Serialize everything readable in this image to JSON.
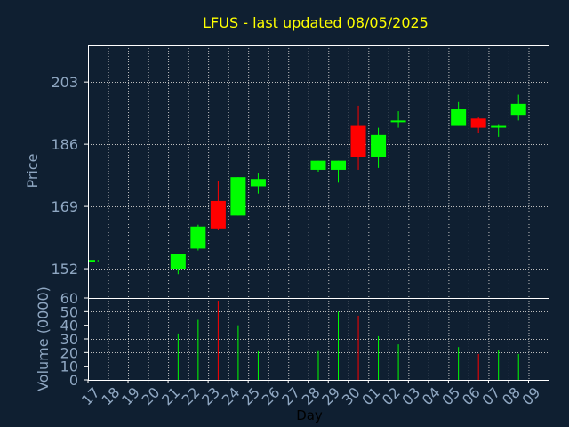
{
  "chart_data": {
    "type": "candlestick",
    "title": "LFUS - last updated 08/05/2025",
    "xlabel": "Day",
    "price_panel": {
      "ylabel": "Price",
      "ylim": [
        144,
        213
      ],
      "yticks": [
        152,
        169,
        186,
        203
      ]
    },
    "volume_panel": {
      "ylabel": "Volume (0000)",
      "ylim": [
        0,
        60
      ],
      "yticks": [
        0,
        10,
        20,
        30,
        40,
        50,
        60
      ]
    },
    "x_ticks": [
      "17",
      "18",
      "19",
      "20",
      "21",
      "22",
      "23",
      "24",
      "25",
      "26",
      "27",
      "28",
      "29",
      "30",
      "01",
      "02",
      "03",
      "04",
      "05",
      "06",
      "07",
      "08",
      "09"
    ],
    "grid": true,
    "colors": {
      "background": "#0f1f31",
      "axis": "#ffffff",
      "grid": "#c0c0c0",
      "title": "#ffff00",
      "label": "#8fa7c2",
      "up": "#00ff00",
      "down": "#ff0000"
    },
    "candles": [
      {
        "day": "17",
        "open": 154,
        "high": 154.4,
        "low": 154,
        "close": 154.4,
        "volume": 0
      },
      {
        "day": "21",
        "open": 152,
        "high": 156,
        "low": 150.5,
        "close": 156,
        "volume": 34
      },
      {
        "day": "22",
        "open": 157.5,
        "high": 164,
        "low": 157,
        "close": 163.5,
        "volume": 44
      },
      {
        "day": "23",
        "open": 170.5,
        "high": 176,
        "low": 162.5,
        "close": 163,
        "volume": 58
      },
      {
        "day": "24",
        "open": 166.5,
        "high": 177,
        "low": 166.5,
        "close": 177,
        "volume": 40
      },
      {
        "day": "25",
        "open": 174.5,
        "high": 178,
        "low": 172.5,
        "close": 176.5,
        "volume": 21
      },
      {
        "day": "28",
        "open": 179,
        "high": 181.5,
        "low": 178.5,
        "close": 181.5,
        "volume": 21
      },
      {
        "day": "29",
        "open": 179,
        "high": 181.5,
        "low": 175.5,
        "close": 181.5,
        "volume": 50
      },
      {
        "day": "30",
        "open": 191,
        "high": 196.5,
        "low": 179,
        "close": 182.5,
        "volume": 47
      },
      {
        "day": "01",
        "open": 182.5,
        "high": 190.5,
        "low": 179.5,
        "close": 188.5,
        "volume": 32
      },
      {
        "day": "02",
        "open": 192.5,
        "high": 195,
        "low": 190.5,
        "close": 192.5,
        "volume": 26
      },
      {
        "day": "05",
        "open": 191,
        "high": 197.5,
        "low": 191,
        "close": 195.5,
        "volume": 24
      },
      {
        "day": "06",
        "open": 193,
        "high": 193.5,
        "low": 189,
        "close": 190.5,
        "volume": 19
      },
      {
        "day": "07",
        "open": 191,
        "high": 191.5,
        "low": 188,
        "close": 191,
        "volume": 22
      },
      {
        "day": "08",
        "open": 194,
        "high": 199.5,
        "low": 192.5,
        "close": 197,
        "volume": 19
      }
    ]
  }
}
